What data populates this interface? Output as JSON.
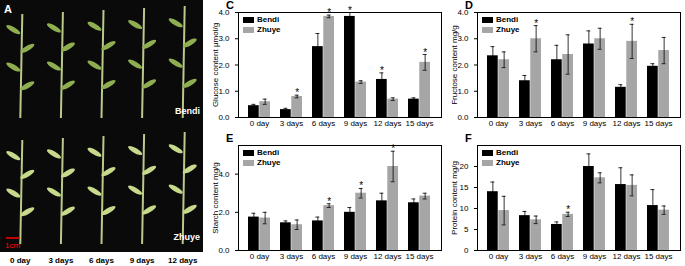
{
  "panel_a": {
    "label": "A",
    "rows": [
      "Bendi",
      "Zhuye"
    ],
    "scale_bar": "1cm",
    "columns": [
      "0 day",
      "3 days",
      "6 days",
      "9 days",
      "12 days"
    ]
  },
  "chart_data": [
    {
      "type": "bar",
      "title": "C",
      "ylabel": "Glucose content μmol/g",
      "categories": [
        "0 day",
        "3 days",
        "6 days",
        "9 days",
        "12 days",
        "15 days"
      ],
      "series": [
        {
          "name": "Bendi",
          "color": "#000000",
          "values": [
            0.45,
            0.3,
            2.7,
            3.85,
            1.45,
            0.7
          ],
          "errors": [
            0.05,
            0.05,
            0.5,
            0.15,
            0.25,
            0.05
          ]
        },
        {
          "name": "Zhuye",
          "color": "#a6a6a6",
          "values": [
            0.6,
            0.8,
            3.85,
            1.35,
            0.7,
            2.1
          ],
          "errors": [
            0.1,
            0.05,
            0.05,
            0.05,
            0.05,
            0.3
          ]
        }
      ],
      "ylim": [
        0,
        4
      ],
      "yticks": [
        0,
        1,
        2,
        3,
        4
      ],
      "legend": "top-left",
      "annotations": [
        {
          "text": "*",
          "series": "Zhuye",
          "category": "3 days"
        },
        {
          "text": "*",
          "series": "Zhuye",
          "category": "6 days"
        },
        {
          "text": "*",
          "series": "Bendi",
          "category": "9 days"
        },
        {
          "text": "*",
          "series": "Bendi",
          "category": "12 days"
        },
        {
          "text": "*",
          "series": "Zhuye",
          "category": "15 days"
        }
      ]
    },
    {
      "type": "bar",
      "title": "D",
      "ylabel": "Fructose content mg/g",
      "categories": [
        "0 day",
        "3 days",
        "6 days",
        "9 days",
        "12 days",
        "15 days"
      ],
      "series": [
        {
          "name": "Bendi",
          "color": "#000000",
          "values": [
            2.35,
            1.4,
            2.2,
            2.8,
            1.15,
            1.95
          ],
          "errors": [
            0.35,
            0.2,
            0.55,
            0.5,
            0.1,
            0.1
          ]
        },
        {
          "name": "Zhuye",
          "color": "#a6a6a6",
          "values": [
            2.2,
            3.0,
            2.4,
            3.0,
            2.9,
            2.55
          ],
          "errors": [
            0.3,
            0.5,
            0.75,
            0.4,
            0.65,
            0.5
          ]
        }
      ],
      "ylim": [
        0,
        4
      ],
      "yticks": [
        0,
        1,
        2,
        3,
        4
      ],
      "legend": "top-left",
      "annotations": [
        {
          "text": "*",
          "series": "Zhuye",
          "category": "3 days"
        },
        {
          "text": "*",
          "series": "Zhuye",
          "category": "12 days"
        }
      ]
    },
    {
      "type": "bar",
      "title": "E",
      "ylabel": "Starch content mg/g",
      "categories": [
        "0 day",
        "3 days",
        "6 days",
        "9 days",
        "12 days",
        "15 days"
      ],
      "series": [
        {
          "name": "Bendi",
          "color": "#000000",
          "values": [
            1.75,
            1.45,
            1.55,
            2.0,
            2.6,
            2.5
          ],
          "errors": [
            0.2,
            0.1,
            0.2,
            0.25,
            0.4,
            0.2
          ]
        },
        {
          "name": "Zhuye",
          "color": "#a6a6a6",
          "values": [
            1.7,
            1.35,
            2.35,
            3.0,
            4.4,
            2.85
          ],
          "errors": [
            0.3,
            0.25,
            0.1,
            0.25,
            0.8,
            0.15
          ]
        }
      ],
      "ylim": [
        0,
        5.5
      ],
      "yticks": [
        0,
        2,
        4
      ],
      "legend": "top-left",
      "annotations": [
        {
          "text": "*",
          "series": "Zhuye",
          "category": "6 days"
        },
        {
          "text": "*",
          "series": "Zhuye",
          "category": "9 days"
        },
        {
          "text": "*",
          "series": "Zhuye",
          "category": "12 days"
        }
      ]
    },
    {
      "type": "bar",
      "title": "F",
      "ylabel": "Protein content mg/g",
      "categories": [
        "0 day",
        "3 days",
        "6 days",
        "9 days",
        "12 days",
        "15 days"
      ],
      "series": [
        {
          "name": "Bendi",
          "color": "#000000",
          "values": [
            14,
            8.3,
            6.2,
            20,
            15.7,
            10.7
          ],
          "errors": [
            2.3,
            1,
            0.6,
            3,
            4,
            3.8
          ]
        },
        {
          "name": "Zhuye",
          "color": "#a6a6a6",
          "values": [
            9.5,
            7.3,
            8.6,
            17.3,
            15.5,
            9.6
          ],
          "errors": [
            3.4,
            0.9,
            0.5,
            1.2,
            2.5,
            1
          ]
        }
      ],
      "ylim": [
        0,
        25
      ],
      "yticks": [
        0,
        5,
        10,
        15,
        20
      ],
      "legend": "top-left",
      "annotations": [
        {
          "text": "*",
          "series": "Zhuye",
          "category": "6 days"
        }
      ]
    }
  ]
}
